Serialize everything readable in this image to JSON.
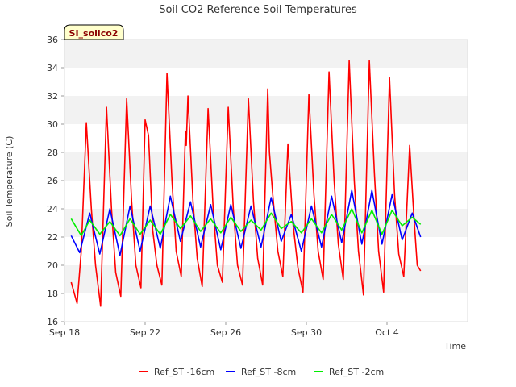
{
  "chart_data": {
    "type": "line",
    "title": "Soil CO2 Reference Soil Temperatures",
    "badge": "SI_soilco2",
    "xlabel": "Time",
    "ylabel": "Soil Temperature (C)",
    "ylim": [
      16,
      36
    ],
    "yticks": [
      "16",
      "18",
      "20",
      "22",
      "24",
      "26",
      "28",
      "30",
      "32",
      "34",
      "36"
    ],
    "xlim": [
      "2023-09-18",
      "2023-10-08"
    ],
    "xticks": [
      {
        "label": "Sep 18",
        "date": "2023-09-18"
      },
      {
        "label": "Sep 22",
        "date": "2023-09-22"
      },
      {
        "label": "Sep 26",
        "date": "2023-09-26"
      },
      {
        "label": "Sep 30",
        "date": "2023-09-30"
      },
      {
        "label": "Oct 4",
        "date": "2023-10-04"
      }
    ],
    "grid": true,
    "legend_position": "bottom",
    "series": [
      {
        "name": "Ref_ST -16cm",
        "color": "#ff0000",
        "points": [
          [
            "2023-09-18 08:00",
            18.8
          ],
          [
            "2023-09-18 15:00",
            17.3
          ],
          [
            "2023-09-18 20:00",
            21.0
          ],
          [
            "2023-09-19 02:00",
            30.1
          ],
          [
            "2023-09-19 08:00",
            24.0
          ],
          [
            "2023-09-19 13:00",
            20.0
          ],
          [
            "2023-09-19 19:00",
            17.1
          ],
          [
            "2023-09-20 02:00",
            31.2
          ],
          [
            "2023-09-20 08:00",
            24.0
          ],
          [
            "2023-09-20 13:00",
            19.5
          ],
          [
            "2023-09-20 19:00",
            17.8
          ],
          [
            "2023-09-21 02:00",
            31.8
          ],
          [
            "2023-09-21 08:00",
            24.5
          ],
          [
            "2023-09-21 13:00",
            20.0
          ],
          [
            "2023-09-21 19:00",
            18.4
          ],
          [
            "2023-09-22 00:00",
            30.3
          ],
          [
            "2023-09-22 04:00",
            29.2
          ],
          [
            "2023-09-22 09:00",
            22.5
          ],
          [
            "2023-09-22 14:00",
            20.0
          ],
          [
            "2023-09-22 20:00",
            18.6
          ],
          [
            "2023-09-23 02:00",
            33.6
          ],
          [
            "2023-09-23 08:00",
            26.0
          ],
          [
            "2023-09-23 13:00",
            21.0
          ],
          [
            "2023-09-23 19:00",
            19.2
          ],
          [
            "2023-09-24 00:00",
            29.5
          ],
          [
            "2023-09-24 01:00",
            28.5
          ],
          [
            "2023-09-24 03:00",
            32.0
          ],
          [
            "2023-09-24 09:00",
            24.5
          ],
          [
            "2023-09-24 14:00",
            20.5
          ],
          [
            "2023-09-24 20:00",
            18.5
          ],
          [
            "2023-09-25 03:00",
            31.1
          ],
          [
            "2023-09-25 09:00",
            24.0
          ],
          [
            "2023-09-25 14:00",
            20.0
          ],
          [
            "2023-09-25 20:00",
            18.8
          ],
          [
            "2023-09-26 03:00",
            31.2
          ],
          [
            "2023-09-26 09:00",
            24.0
          ],
          [
            "2023-09-26 14:00",
            20.0
          ],
          [
            "2023-09-26 20:00",
            18.6
          ],
          [
            "2023-09-27 03:00",
            31.8
          ],
          [
            "2023-09-27 09:00",
            24.5
          ],
          [
            "2023-09-27 14:00",
            20.5
          ],
          [
            "2023-09-27 20:00",
            18.6
          ],
          [
            "2023-09-28 02:00",
            32.5
          ],
          [
            "2023-09-28 04:00",
            28.0
          ],
          [
            "2023-09-28 08:00",
            25.0
          ],
          [
            "2023-09-28 14:00",
            21.0
          ],
          [
            "2023-09-28 20:00",
            19.2
          ],
          [
            "2023-09-29 02:00",
            28.6
          ],
          [
            "2023-09-29 08:00",
            23.0
          ],
          [
            "2023-09-29 14:00",
            19.8
          ],
          [
            "2023-09-29 20:00",
            18.1
          ],
          [
            "2023-09-30 03:00",
            32.1
          ],
          [
            "2023-09-30 09:00",
            25.0
          ],
          [
            "2023-09-30 14:00",
            21.0
          ],
          [
            "2023-09-30 20:00",
            19.0
          ],
          [
            "2023-10-01 03:00",
            33.7
          ],
          [
            "2023-10-01 09:00",
            26.0
          ],
          [
            "2023-10-01 14:00",
            21.5
          ],
          [
            "2023-10-01 20:00",
            19.0
          ],
          [
            "2023-10-02 03:00",
            34.5
          ],
          [
            "2023-10-02 09:00",
            26.0
          ],
          [
            "2023-10-02 14:00",
            21.0
          ],
          [
            "2023-10-02 20:00",
            17.9
          ],
          [
            "2023-10-03 03:00",
            34.5
          ],
          [
            "2023-10-03 09:00",
            26.5
          ],
          [
            "2023-10-03 14:00",
            21.0
          ],
          [
            "2023-10-03 20:00",
            18.1
          ],
          [
            "2023-10-04 03:00",
            33.3
          ],
          [
            "2023-10-04 09:00",
            25.0
          ],
          [
            "2023-10-04 14:00",
            20.8
          ],
          [
            "2023-10-04 20:00",
            19.2
          ],
          [
            "2023-10-05 03:00",
            28.5
          ],
          [
            "2023-10-05 08:00",
            23.5
          ],
          [
            "2023-10-05 12:00",
            20.0
          ],
          [
            "2023-10-05 16:00",
            19.6
          ]
        ]
      },
      {
        "name": "Ref_ST -8cm",
        "color": "#0000ff",
        "points": [
          [
            "2023-09-18 08:00",
            22.1
          ],
          [
            "2023-09-18 18:00",
            20.9
          ],
          [
            "2023-09-19 06:00",
            23.7
          ],
          [
            "2023-09-19 18:00",
            20.8
          ],
          [
            "2023-09-20 06:00",
            24.0
          ],
          [
            "2023-09-20 18:00",
            20.7
          ],
          [
            "2023-09-21 06:00",
            24.2
          ],
          [
            "2023-09-21 18:00",
            21.0
          ],
          [
            "2023-09-22 06:00",
            24.2
          ],
          [
            "2023-09-22 18:00",
            21.2
          ],
          [
            "2023-09-23 06:00",
            24.9
          ],
          [
            "2023-09-23 18:00",
            21.7
          ],
          [
            "2023-09-24 06:00",
            24.5
          ],
          [
            "2023-09-24 18:00",
            21.3
          ],
          [
            "2023-09-25 06:00",
            24.3
          ],
          [
            "2023-09-25 18:00",
            21.1
          ],
          [
            "2023-09-26 06:00",
            24.3
          ],
          [
            "2023-09-26 18:00",
            21.2
          ],
          [
            "2023-09-27 06:00",
            24.2
          ],
          [
            "2023-09-27 18:00",
            21.3
          ],
          [
            "2023-09-28 06:00",
            24.8
          ],
          [
            "2023-09-28 18:00",
            21.7
          ],
          [
            "2023-09-29 06:00",
            23.6
          ],
          [
            "2023-09-29 18:00",
            21.0
          ],
          [
            "2023-09-30 06:00",
            24.2
          ],
          [
            "2023-09-30 18:00",
            21.3
          ],
          [
            "2023-10-01 06:00",
            24.9
          ],
          [
            "2023-10-01 18:00",
            21.6
          ],
          [
            "2023-10-02 06:00",
            25.3
          ],
          [
            "2023-10-02 18:00",
            21.5
          ],
          [
            "2023-10-03 06:00",
            25.3
          ],
          [
            "2023-10-03 18:00",
            21.5
          ],
          [
            "2023-10-04 06:00",
            25.0
          ],
          [
            "2023-10-04 18:00",
            21.8
          ],
          [
            "2023-10-05 06:00",
            23.7
          ],
          [
            "2023-10-05 16:00",
            22.0
          ]
        ]
      },
      {
        "name": "Ref_ST -2cm",
        "color": "#00ee00",
        "points": [
          [
            "2023-09-18 08:00",
            23.3
          ],
          [
            "2023-09-18 20:00",
            22.1
          ],
          [
            "2023-09-19 06:00",
            23.2
          ],
          [
            "2023-09-19 18:00",
            22.2
          ],
          [
            "2023-09-20 06:00",
            23.1
          ],
          [
            "2023-09-20 18:00",
            22.1
          ],
          [
            "2023-09-21 06:00",
            23.3
          ],
          [
            "2023-09-21 18:00",
            22.2
          ],
          [
            "2023-09-22 06:00",
            23.2
          ],
          [
            "2023-09-22 18:00",
            22.2
          ],
          [
            "2023-09-23 06:00",
            23.6
          ],
          [
            "2023-09-23 18:00",
            22.6
          ],
          [
            "2023-09-24 06:00",
            23.5
          ],
          [
            "2023-09-24 18:00",
            22.4
          ],
          [
            "2023-09-25 06:00",
            23.3
          ],
          [
            "2023-09-25 18:00",
            22.3
          ],
          [
            "2023-09-26 06:00",
            23.4
          ],
          [
            "2023-09-26 18:00",
            22.4
          ],
          [
            "2023-09-27 06:00",
            23.2
          ],
          [
            "2023-09-27 18:00",
            22.5
          ],
          [
            "2023-09-28 06:00",
            23.7
          ],
          [
            "2023-09-28 18:00",
            22.6
          ],
          [
            "2023-09-29 06:00",
            23.1
          ],
          [
            "2023-09-29 18:00",
            22.3
          ],
          [
            "2023-09-30 06:00",
            23.3
          ],
          [
            "2023-09-30 18:00",
            22.3
          ],
          [
            "2023-10-01 06:00",
            23.6
          ],
          [
            "2023-10-01 18:00",
            22.5
          ],
          [
            "2023-10-02 06:00",
            24.0
          ],
          [
            "2023-10-02 18:00",
            22.3
          ],
          [
            "2023-10-03 06:00",
            23.9
          ],
          [
            "2023-10-03 18:00",
            22.2
          ],
          [
            "2023-10-04 06:00",
            23.9
          ],
          [
            "2023-10-04 18:00",
            22.8
          ],
          [
            "2023-10-05 06:00",
            23.4
          ],
          [
            "2023-10-05 16:00",
            22.9
          ]
        ]
      }
    ]
  }
}
